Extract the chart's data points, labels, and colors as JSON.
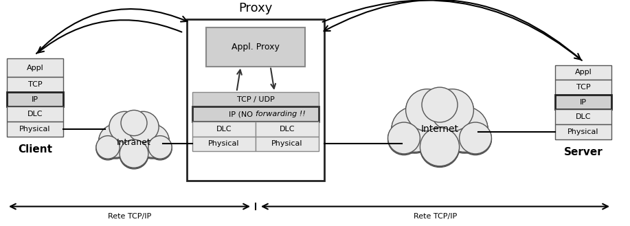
{
  "title": "Proxy",
  "client_label": "Client",
  "server_label": "Server",
  "intranet_label": "Intranet",
  "internet_label": "Internet",
  "client_stack": [
    "Appl",
    "TCP",
    "IP",
    "DLC",
    "Physical"
  ],
  "client_ip_bold": 2,
  "server_stack": [
    "Appl",
    "TCP",
    "IP",
    "DLC",
    "Physical"
  ],
  "server_ip_bold": 2,
  "proxy_appl_label": "Appl. Proxy",
  "proxy_tcp_label": "TCP / UDP",
  "proxy_ip_label": "IP (NO forwarding !!)",
  "proxy_dlc_labels": [
    "DLC",
    "DLC"
  ],
  "proxy_phys_labels": [
    "Physical",
    "Physical"
  ],
  "arrow_left_label": "Rete TCP/IP",
  "arrow_right_label": "Rete TCP/IP",
  "bg_color": "#ffffff",
  "box_fill_light": "#e8e8e8",
  "box_fill_medium": "#d0d0d0",
  "box_stroke": "#555555",
  "box_stroke_bold": "#222222",
  "cloud_fill": "#e8e8e8",
  "cloud_stroke": "#555555"
}
